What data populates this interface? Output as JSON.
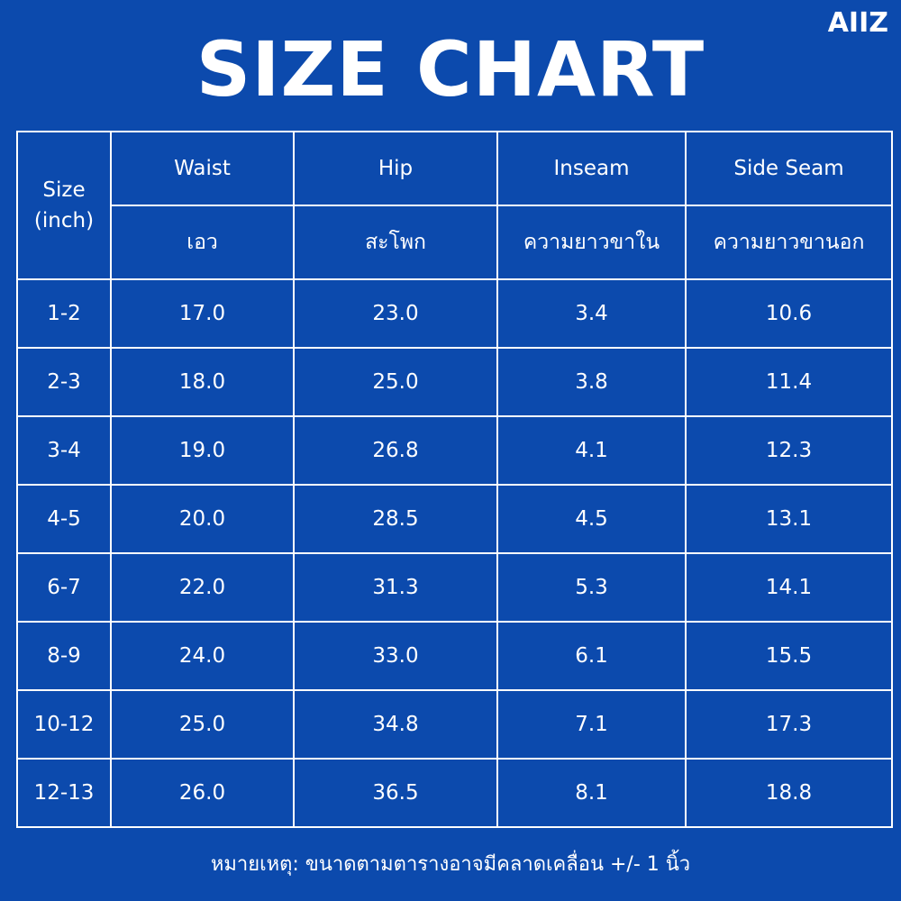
{
  "brand": "AIIZ",
  "title": "SIZE CHART",
  "table": {
    "size_header_line1": "Size",
    "size_header_line2": "(inch)",
    "columns": [
      {
        "en": "Waist",
        "th": "เอว"
      },
      {
        "en": "Hip",
        "th": "สะโพก"
      },
      {
        "en": "Inseam",
        "th": "ความยาวขาใน"
      },
      {
        "en": "Side Seam",
        "th": "ความยาวขานอก"
      }
    ],
    "rows": [
      {
        "size": "1-2",
        "waist": "17.0",
        "hip": "23.0",
        "inseam": "3.4",
        "side_seam": "10.6"
      },
      {
        "size": "2-3",
        "waist": "18.0",
        "hip": "25.0",
        "inseam": "3.8",
        "side_seam": "11.4"
      },
      {
        "size": "3-4",
        "waist": "19.0",
        "hip": "26.8",
        "inseam": "4.1",
        "side_seam": "12.3"
      },
      {
        "size": "4-5",
        "waist": "20.0",
        "hip": "28.5",
        "inseam": "4.5",
        "side_seam": "13.1"
      },
      {
        "size": "6-7",
        "waist": "22.0",
        "hip": "31.3",
        "inseam": "5.3",
        "side_seam": "14.1"
      },
      {
        "size": "8-9",
        "waist": "24.0",
        "hip": "33.0",
        "inseam": "6.1",
        "side_seam": "15.5"
      },
      {
        "size": "10-12",
        "waist": "25.0",
        "hip": "34.8",
        "inseam": "7.1",
        "side_seam": "17.3"
      },
      {
        "size": "12-13",
        "waist": "26.0",
        "hip": "36.5",
        "inseam": "8.1",
        "side_seam": "18.8"
      }
    ]
  },
  "note": "หมายเหตุ: ขนาดตามตารางอาจมีคลาดเคลื่อน +/- 1 นิ้ว",
  "colors": {
    "background": "#0c4aad",
    "text": "#ffffff",
    "grid": "#ffffff"
  }
}
